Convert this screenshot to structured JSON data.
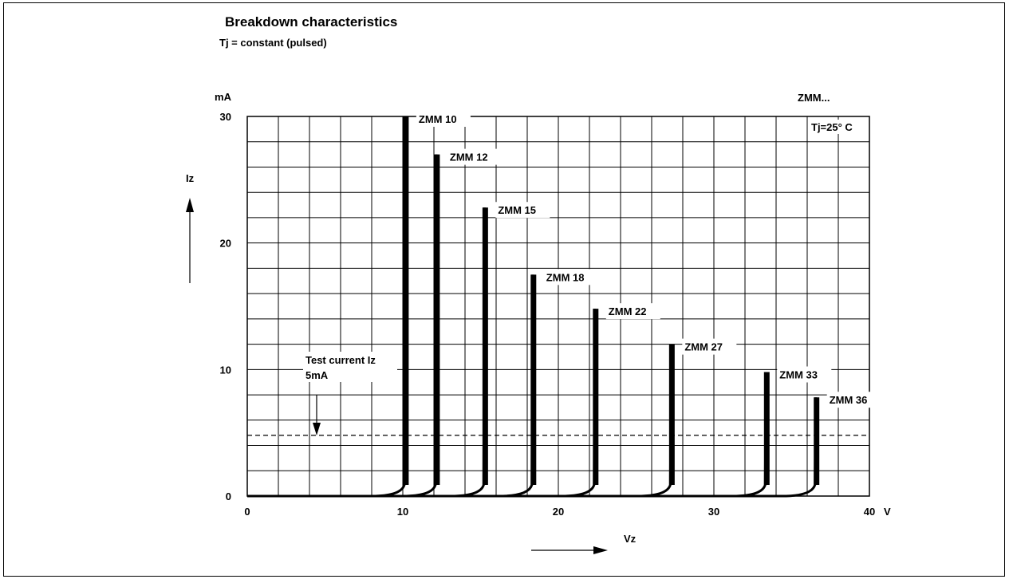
{
  "title": "Breakdown characteristics",
  "subtitle": "Tj = constant (pulsed)",
  "chart_data": {
    "type": "line",
    "title": "Breakdown characteristics",
    "subtitle": "Tj = constant (pulsed)",
    "xlabel": "Vz",
    "x_unit": "V",
    "ylabel": "Iz",
    "y_unit": "mA",
    "xlim": [
      0,
      40
    ],
    "ylim": [
      0,
      30
    ],
    "x_ticks": [
      0,
      10,
      20,
      30,
      40
    ],
    "y_ticks": [
      0,
      10,
      20,
      30
    ],
    "grid": true,
    "family_label": "ZMM...",
    "condition_label": "Tj=25° C",
    "test_current": {
      "label_line1": "Test current Iz",
      "label_line2": "5mA",
      "value_mA": 4.8
    },
    "series": [
      {
        "name": "ZMM 10",
        "vz": 10.2,
        "i_max": 30,
        "label": "ZMM 10"
      },
      {
        "name": "ZMM 12",
        "vz": 12.2,
        "i_max": 27,
        "label": "ZMM 12"
      },
      {
        "name": "ZMM 15",
        "vz": 15.3,
        "i_max": 22.8,
        "label": "ZMM 15"
      },
      {
        "name": "ZMM 18",
        "vz": 18.4,
        "i_max": 17.5,
        "label": "ZMM 18"
      },
      {
        "name": "ZMM 22",
        "vz": 22.4,
        "i_max": 14.8,
        "label": "ZMM 22"
      },
      {
        "name": "ZMM 27",
        "vz": 27.3,
        "i_max": 12.0,
        "label": "ZMM 27"
      },
      {
        "name": "ZMM 33",
        "vz": 33.4,
        "i_max": 9.8,
        "label": "ZMM 33"
      },
      {
        "name": "ZMM 36",
        "vz": 36.6,
        "i_max": 7.8,
        "label": "ZMM 36"
      }
    ]
  }
}
